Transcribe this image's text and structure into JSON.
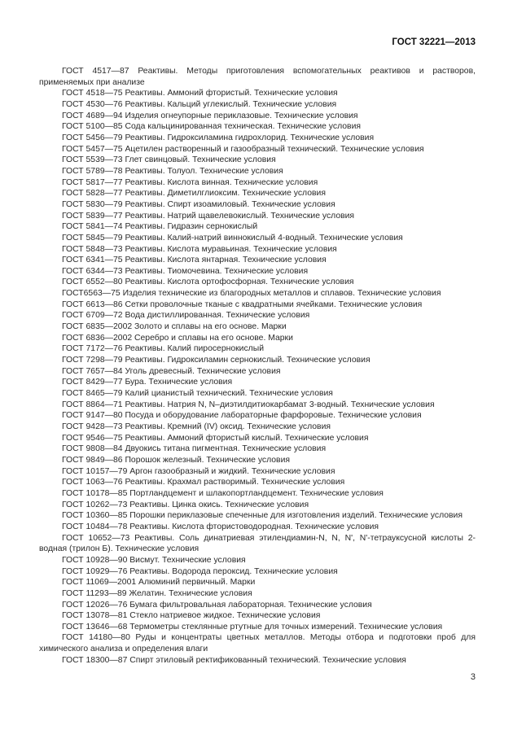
{
  "header": "ГОСТ 32221—2013",
  "page_number": "3",
  "references": [
    "ГОСТ 4517—87 Реактивы. Методы приготовления вспомогательных реактивов и растворов, применяемых при анализе",
    "ГОСТ 4518—75 Реактивы. Аммоний фтористый. Технические условия",
    "ГОСТ 4530—76 Реактивы. Кальций углекислый. Технические условия",
    "ГОСТ 4689—94 Изделия огнеупорные периклазовые. Технические условия",
    "ГОСТ 5100—85 Сода кальцинированная техническая. Технические условия",
    "ГОСТ 5456—79 Реактивы. Гидроксиламина гидрохлорид. Технические условия",
    "ГОСТ 5457—75 Ацетилен растворенный и газообразный технический. Технические условия",
    "ГОСТ 5539—73 Глет свинцовый. Технические условия",
    "ГОСТ 5789—78 Реактивы. Толуол. Технические условия",
    "ГОСТ 5817—77 Реактивы. Кислота винная. Технические условия",
    "ГОСТ 5828—77 Реактивы. Диметилглиоксим. Технические условия",
    "ГОСТ 5830—79 Реактивы. Спирт изоамиловый. Технические условия",
    "ГОСТ 5839—77 Реактивы. Натрий щавелевокислый. Технические условия",
    "ГОСТ 5841—74 Реактивы. Гидразин сернокислый",
    "ГОСТ 5845—79 Реактивы. Калий-натрий виннокислый 4-водный. Технические условия",
    "ГОСТ 5848—73 Реактивы. Кислота муравьиная. Технические условия",
    "ГОСТ 6341—75 Реактивы. Кислота янтарная. Технические условия",
    "ГОСТ 6344—73 Реактивы. Тиомочевина. Технические условия",
    "ГОСТ 6552—80 Реактивы. Кислота ортофосфорная. Технические условия",
    "ГОСТ6563—75 Изделия технические из благородных металлов и сплавов. Технические условия",
    "ГОСТ 6613—86 Сетки проволочные тканые с квадратными ячейками. Технические условия",
    "ГОСТ 6709—72 Вода дистиллированная. Технические условия",
    "ГОСТ 6835—2002 Золото и сплавы на его основе. Марки",
    "ГОСТ 6836—2002 Серебро и сплавы на его основе. Марки",
    "ГОСТ 7172—76 Реактивы. Калий пиросернокислый",
    "ГОСТ 7298—79 Реактивы. Гидроксиламин сернокислый. Технические условия",
    "ГОСТ 7657—84 Уголь древесный. Технические условия",
    "ГОСТ 8429—77 Бура. Технические условия",
    "ГОСТ 8465—79 Калий цианистый технический. Технические условия",
    "ГОСТ 8864—71 Реактивы. Натрия N, N–диэтилдитиокарбамат 3-водный. Технические условия",
    "ГОСТ 9147—80 Посуда и оборудование лабораторные фарфоровые. Технические условия",
    "ГОСТ 9428—73 Реактивы. Кремний (IV) оксид. Технические условия",
    "ГОСТ 9546—75 Реактивы. Аммоний фтористый кислый. Технические условия",
    "ГОСТ 9808—84 Двуокись титана пигментная. Технические условия",
    "ГОСТ 9849—86 Порошок железный. Технические условия",
    "ГОСТ 10157—79 Аргон газообразный и жидкий. Технические условия",
    "ГОСТ 1063—76 Реактивы. Крахмал растворимый. Технические условия",
    "ГОСТ 10178—85 Портландцемент и шлакопортландцемент. Технические условия",
    "ГОСТ 10262—73 Реактивы. Цинка окись. Технические условия",
    "ГОСТ 10360—85 Порошки периклазовые спеченные для изготовления изделий. Технические условия",
    "ГОСТ 10484—78 Реактивы. Кислота фтористоводородная. Технические условия",
    "ГОСТ 10652—73 Реактивы. Соль динатриевая этилендиамин-N, N, N', N'-тетрауксусной кислоты 2-водная (трилон Б). Технические условия",
    "ГОСТ 10928—90 Висмут. Технические условия",
    "ГОСТ 10929—76 Реактивы. Водорода пероксид. Технические условия",
    "ГОСТ 11069—2001 Алюминий первичный. Марки",
    "ГОСТ 11293—89 Желатин. Технические условия",
    "ГОСТ 12026—76 Бумага фильтровальная лабораторная. Технические условия",
    "ГОСТ 13078—81 Стекло натриевое жидкое. Технические условия",
    "ГОСТ 13646—68 Термометры стеклянные ртутные для точных измерений. Технические условия",
    "ГОСТ 14180—80 Руды и концентраты цветных металлов. Методы отбора и подготовки проб для химического анализа и определения влаги",
    "ГОСТ 18300—87 Спирт этиловый ректификованный технический. Технические условия"
  ]
}
